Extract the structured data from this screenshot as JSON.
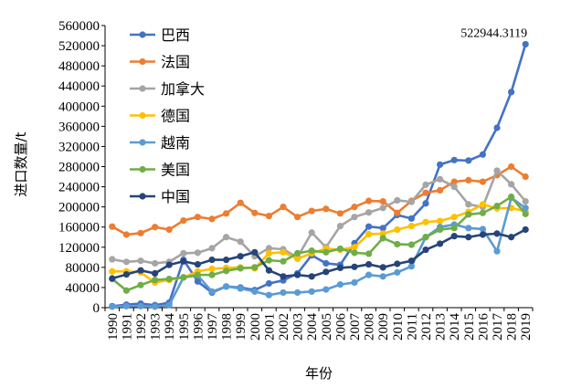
{
  "chart_data": {
    "type": "line",
    "title": "",
    "xlabel": "年份",
    "ylabel": "进口数量/t",
    "ylim": [
      0,
      560000
    ],
    "ytick_step": 40000,
    "grid": false,
    "legend_position": "top-left",
    "categories": [
      "1990",
      "1991",
      "1992",
      "1993",
      "1994",
      "1995",
      "1996",
      "1997",
      "1998",
      "1999",
      "2000",
      "2001",
      "2002",
      "2003",
      "2004",
      "2005",
      "2006",
      "2007",
      "2008",
      "2009",
      "2010",
      "2011",
      "2012",
      "2013",
      "2014",
      "2015",
      "2016",
      "2017",
      "2018",
      "2019"
    ],
    "annotation": {
      "text": "522944.3119",
      "series": "巴西",
      "category": "2019"
    },
    "series": [
      {
        "name": "巴西",
        "color": "#4472C4",
        "values": [
          3000,
          6000,
          8000,
          5000,
          10000,
          95000,
          52000,
          30000,
          42000,
          40000,
          35000,
          48000,
          54000,
          68000,
          104000,
          88000,
          85000,
          128000,
          161000,
          158000,
          184000,
          177000,
          207000,
          284000,
          293000,
          292000,
          304000,
          357000,
          428000,
          522944
        ]
      },
      {
        "name": "法国",
        "color": "#ED7D31",
        "values": [
          161000,
          145000,
          148000,
          160000,
          155000,
          173000,
          180000,
          176000,
          187000,
          208000,
          188000,
          182000,
          200000,
          180000,
          192000,
          196000,
          187000,
          200000,
          212000,
          211000,
          188000,
          212000,
          228000,
          233000,
          250000,
          253000,
          250000,
          263000,
          280000,
          260000
        ]
      },
      {
        "name": "加拿大",
        "color": "#A5A5A5",
        "values": [
          96000,
          91000,
          93000,
          88000,
          91000,
          108000,
          109000,
          118000,
          140000,
          131000,
          102000,
          118000,
          116000,
          100000,
          149000,
          120000,
          162000,
          180000,
          189000,
          198000,
          213000,
          210000,
          244000,
          255000,
          240000,
          205000,
          200000,
          272000,
          245000,
          211000
        ]
      },
      {
        "name": "德国",
        "color": "#FFC000",
        "values": [
          72000,
          72000,
          70000,
          50000,
          55000,
          60000,
          72000,
          77000,
          79000,
          80000,
          78000,
          108000,
          110000,
          97000,
          108000,
          117000,
          115000,
          120000,
          146000,
          147000,
          155000,
          162000,
          170000,
          172000,
          180000,
          190000,
          205000,
          197000,
          198000,
          191000
        ]
      },
      {
        "name": "越南",
        "color": "#5B9BD5",
        "values": [
          2000,
          3000,
          3000,
          2000,
          5000,
          60000,
          64000,
          32000,
          42000,
          38000,
          32000,
          25000,
          30000,
          30000,
          32000,
          36000,
          46000,
          50000,
          65000,
          62000,
          70000,
          82000,
          140000,
          160000,
          165000,
          158000,
          156000,
          112000,
          218000,
          198000
        ]
      },
      {
        "name": "美国",
        "color": "#70AD47",
        "values": [
          57000,
          34000,
          45000,
          55000,
          57000,
          60000,
          65000,
          65000,
          73000,
          78000,
          80000,
          94000,
          92000,
          108000,
          113000,
          110000,
          117000,
          109000,
          107000,
          138000,
          126000,
          125000,
          140000,
          155000,
          158000,
          185000,
          188000,
          202000,
          220000,
          186000
        ]
      },
      {
        "name": "中国",
        "color": "#264478",
        "values": [
          58000,
          66000,
          74000,
          68000,
          85000,
          92000,
          86000,
          95000,
          95000,
          102000,
          110000,
          74000,
          62000,
          65000,
          62000,
          71000,
          79000,
          81000,
          86000,
          80000,
          87000,
          93000,
          115000,
          127000,
          142000,
          140000,
          145000,
          147000,
          140000,
          155000
        ]
      }
    ]
  }
}
